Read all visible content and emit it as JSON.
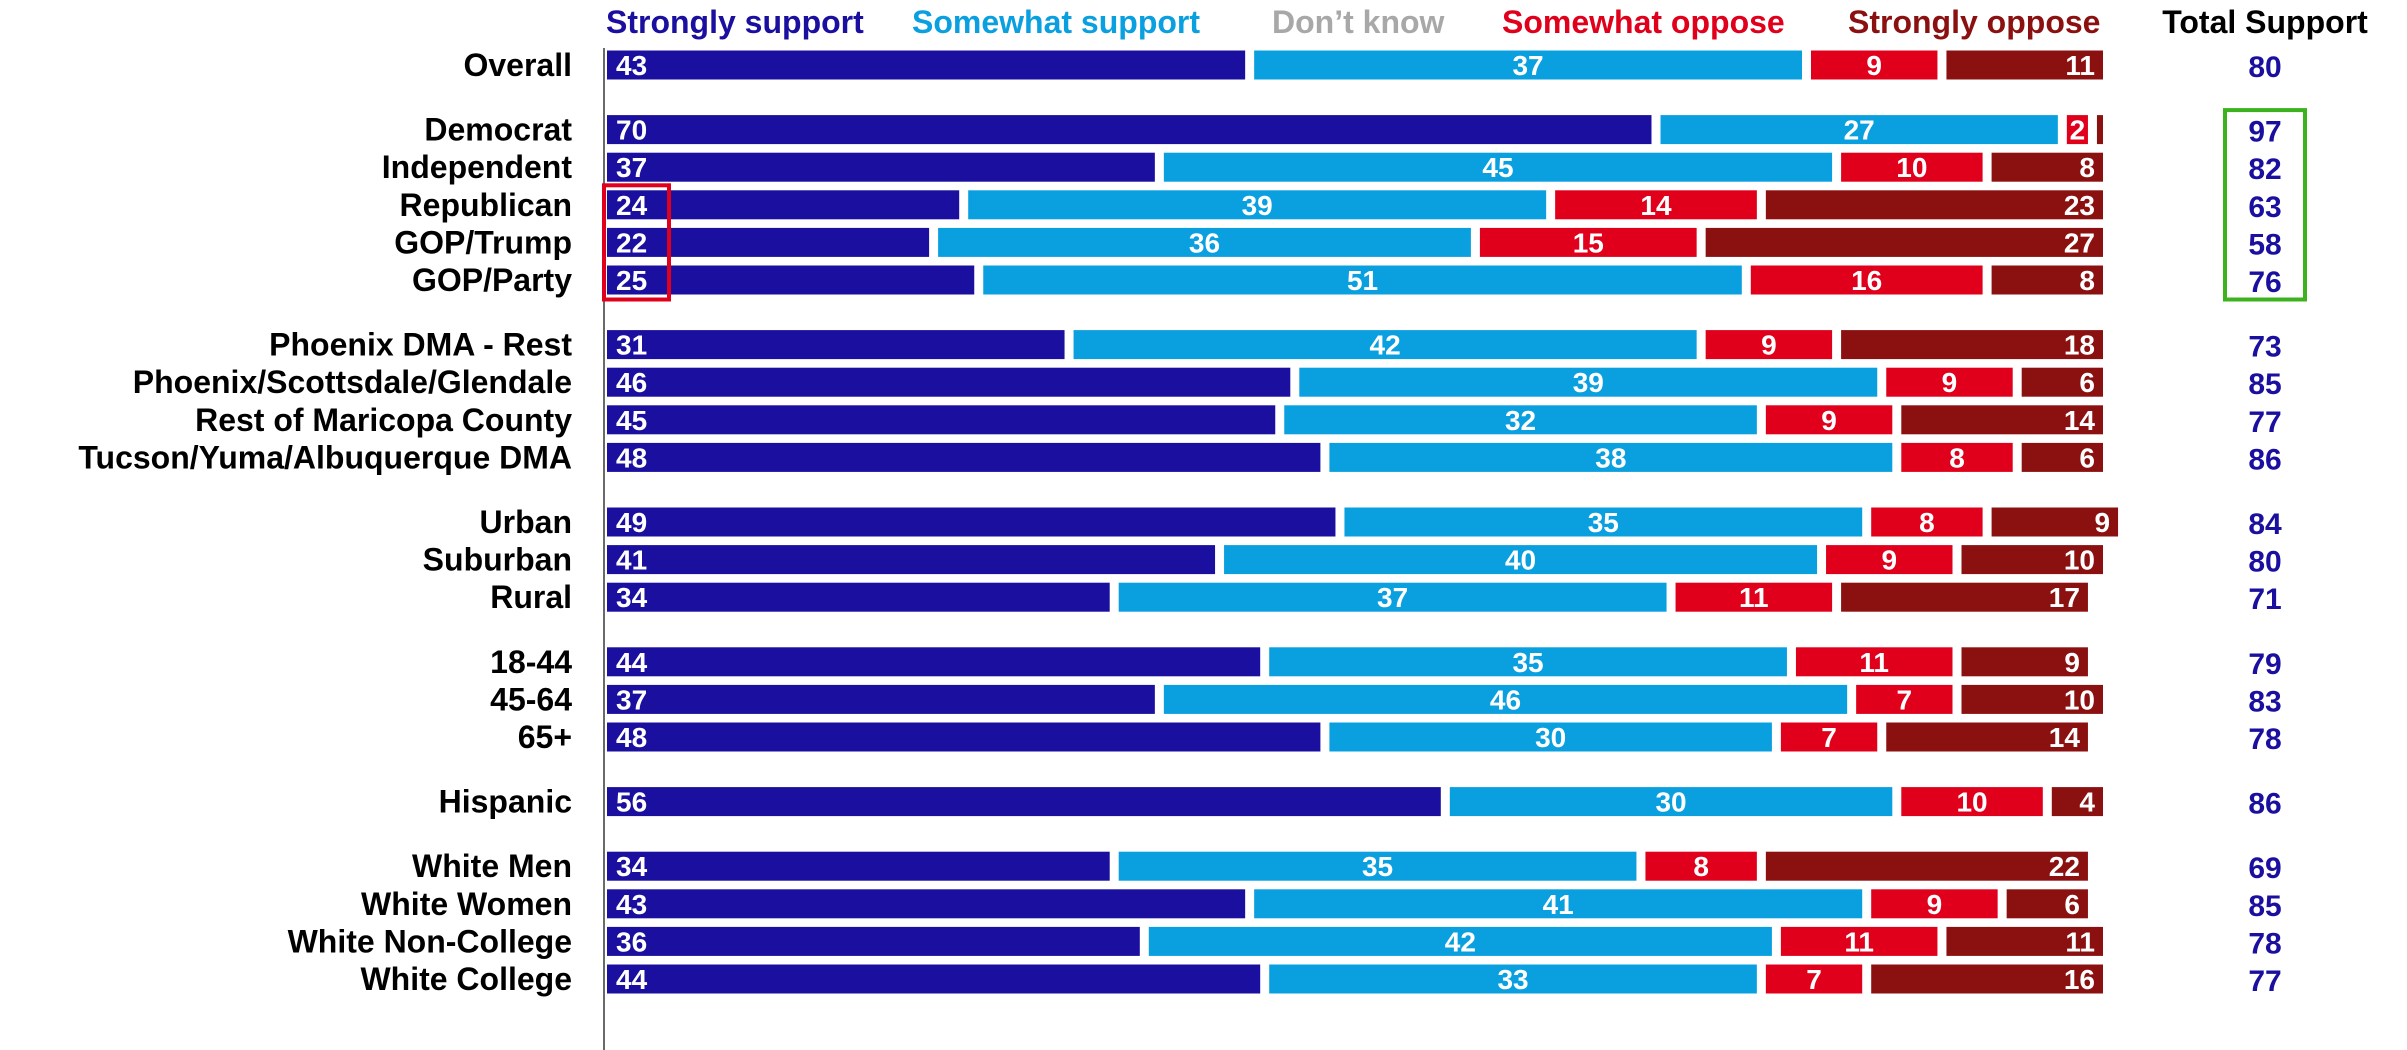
{
  "chart_data": {
    "type": "bar",
    "stacked": true,
    "orientation": "horizontal",
    "xlim": [
      0,
      100
    ],
    "legend": {
      "placement": "top",
      "entries": [
        "Strongly support",
        "Somewhat support",
        "Don’t know",
        "Somewhat oppose",
        "Strongly oppose"
      ]
    },
    "total_header": "Total Support",
    "categories": [
      "Overall",
      "Democrat",
      "Independent",
      "Republican",
      "GOP/Trump",
      "GOP/Party",
      "Phoenix DMA - Rest",
      "Phoenix/Scottsdale/Glendale",
      "Rest of Maricopa County",
      "Tucson/Yuma/Albuquerque DMA",
      "Urban",
      "Suburban",
      "Rural",
      "18-44",
      "45-64",
      "65+",
      "Hispanic",
      "White Men",
      "White Women",
      "White Non-College",
      "White College"
    ],
    "groups": [
      1,
      5,
      4,
      3,
      3,
      1,
      4
    ],
    "series": [
      {
        "name": "Strongly support",
        "color": "#1a0f9e",
        "values": [
          43,
          70,
          37,
          24,
          22,
          25,
          31,
          46,
          45,
          48,
          49,
          41,
          34,
          44,
          37,
          48,
          56,
          34,
          43,
          36,
          44
        ]
      },
      {
        "name": "Somewhat support",
        "color": "#0aa0e0",
        "values": [
          37,
          27,
          45,
          39,
          36,
          51,
          42,
          39,
          32,
          38,
          35,
          40,
          37,
          35,
          46,
          30,
          30,
          35,
          41,
          42,
          33
        ]
      },
      {
        "name": "Don’t know",
        "color": "#a8a8a8",
        "values": [
          0,
          0,
          0,
          0,
          0,
          0,
          0,
          0,
          0,
          0,
          0,
          0,
          0,
          0,
          0,
          0,
          0,
          0,
          0,
          0,
          0
        ]
      },
      {
        "name": "Somewhat oppose",
        "color": "#e0001b",
        "values": [
          9,
          2,
          10,
          14,
          15,
          16,
          9,
          9,
          9,
          8,
          8,
          9,
          11,
          11,
          7,
          7,
          10,
          8,
          9,
          11,
          7
        ]
      },
      {
        "name": "Strongly oppose",
        "color": "#8b1010",
        "values": [
          11,
          1,
          8,
          23,
          27,
          8,
          18,
          6,
          14,
          6,
          9,
          10,
          17,
          9,
          10,
          14,
          4,
          22,
          6,
          11,
          16
        ]
      }
    ],
    "data_labels": [
      [
        "43",
        "37",
        "",
        "9",
        "11"
      ],
      [
        "70",
        "27",
        "",
        "2",
        ""
      ],
      [
        "37",
        "45",
        "",
        "10",
        "8"
      ],
      [
        "24",
        "39",
        "",
        "14",
        "23"
      ],
      [
        "22",
        "36",
        "",
        "15",
        "27"
      ],
      [
        "25",
        "51",
        "",
        "16",
        "8"
      ],
      [
        "31",
        "42",
        "",
        "9",
        "18"
      ],
      [
        "46",
        "39",
        "",
        "9",
        "6"
      ],
      [
        "45",
        "32",
        "",
        "9",
        "14"
      ],
      [
        "48",
        "38",
        "",
        "8",
        "6"
      ],
      [
        "49",
        "35",
        "",
        "8",
        "9"
      ],
      [
        "41",
        "40",
        "",
        "9",
        "10"
      ],
      [
        "34",
        "37",
        "",
        "11",
        "17"
      ],
      [
        "44",
        "35",
        "",
        "11",
        "9"
      ],
      [
        "37",
        "46",
        "",
        "7",
        "10"
      ],
      [
        "48",
        "30",
        "",
        "7",
        "14"
      ],
      [
        "56",
        "30",
        "",
        "10",
        "4"
      ],
      [
        "34",
        "35",
        "",
        "8",
        "22"
      ],
      [
        "43",
        "41",
        "",
        "9",
        "6"
      ],
      [
        "36",
        "42",
        "",
        "11",
        "11"
      ],
      [
        "44",
        "33",
        "",
        "7",
        "16"
      ]
    ],
    "total_support": [
      80,
      97,
      82,
      63,
      58,
      76,
      73,
      85,
      77,
      86,
      84,
      80,
      71,
      79,
      83,
      78,
      86,
      69,
      85,
      78,
      77
    ],
    "highlights": [
      {
        "kind": "box",
        "color": "#e0001b",
        "rows": [
          "Republican",
          "GOP/Trump",
          "GOP/Party"
        ],
        "segment": "Strongly support"
      },
      {
        "kind": "box",
        "color": "#3cb31e",
        "rows": [
          "Democrat",
          "Independent",
          "Republican",
          "GOP/Trump",
          "GOP/Party"
        ],
        "segment": "Total Support"
      }
    ]
  }
}
